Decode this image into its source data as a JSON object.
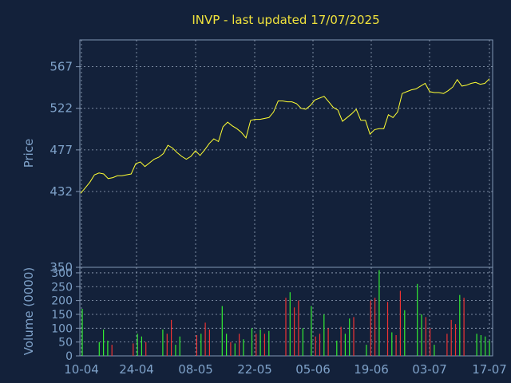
{
  "chart_data": {
    "type": "line",
    "title": "INVP - last updated 17/07/2025",
    "price": {
      "ylabel": "Price",
      "y_ticks": [
        350,
        432,
        477,
        522,
        567
      ],
      "ylim": [
        350,
        596
      ],
      "values": [
        430,
        436,
        442,
        450,
        452,
        451,
        446,
        447,
        449,
        449,
        450,
        451,
        462,
        464,
        459,
        463,
        467,
        469,
        473,
        482,
        479,
        474,
        470,
        467,
        470,
        476,
        471,
        477,
        484,
        489,
        486,
        502,
        507,
        503,
        500,
        496,
        490,
        509,
        510,
        510,
        511,
        512,
        518,
        530,
        530,
        529,
        529,
        527,
        522,
        521,
        525,
        531,
        533,
        535,
        529,
        523,
        520,
        508,
        512,
        516,
        521,
        509,
        509,
        494,
        499,
        500,
        500,
        515,
        512,
        518,
        538,
        540,
        542,
        543,
        546,
        549,
        540,
        539,
        539,
        538,
        541,
        545,
        553,
        546,
        547,
        549,
        550,
        548,
        549,
        554
      ],
      "line_color": "#ffff33"
    },
    "volume": {
      "ylabel": "Volume (0000)",
      "y_ticks": [
        0,
        50,
        100,
        150,
        200,
        250,
        300
      ],
      "ylim": [
        0,
        320
      ],
      "bars": [
        {
          "v": 170,
          "up": true
        },
        {
          "v": 0,
          "up": true
        },
        {
          "v": 0,
          "up": true
        },
        {
          "v": 0,
          "up": true
        },
        {
          "v": 50,
          "up": true
        },
        {
          "v": 95,
          "up": true
        },
        {
          "v": 55,
          "up": true
        },
        {
          "v": 40,
          "up": false
        },
        {
          "v": 0,
          "up": true
        },
        {
          "v": 0,
          "up": true
        },
        {
          "v": 0,
          "up": true
        },
        {
          "v": 0,
          "up": true
        },
        {
          "v": 45,
          "up": false
        },
        {
          "v": 80,
          "up": true
        },
        {
          "v": 70,
          "up": true
        },
        {
          "v": 50,
          "up": false
        },
        {
          "v": 0,
          "up": true
        },
        {
          "v": 0,
          "up": true
        },
        {
          "v": 0,
          "up": true
        },
        {
          "v": 95,
          "up": true
        },
        {
          "v": 80,
          "up": false
        },
        {
          "v": 130,
          "up": false
        },
        {
          "v": 40,
          "up": true
        },
        {
          "v": 70,
          "up": true
        },
        {
          "v": 0,
          "up": true
        },
        {
          "v": 0,
          "up": true
        },
        {
          "v": 0,
          "up": true
        },
        {
          "v": 75,
          "up": false
        },
        {
          "v": 80,
          "up": true
        },
        {
          "v": 120,
          "up": false
        },
        {
          "v": 95,
          "up": false
        },
        {
          "v": 0,
          "up": true
        },
        {
          "v": 0,
          "up": true
        },
        {
          "v": 180,
          "up": true
        },
        {
          "v": 80,
          "up": true
        },
        {
          "v": 50,
          "up": false
        },
        {
          "v": 45,
          "up": true
        },
        {
          "v": 80,
          "up": false
        },
        {
          "v": 60,
          "up": true
        },
        {
          "v": 0,
          "up": true
        },
        {
          "v": 100,
          "up": true
        },
        {
          "v": 80,
          "up": false
        },
        {
          "v": 95,
          "up": true
        },
        {
          "v": 80,
          "up": false
        },
        {
          "v": 90,
          "up": true
        },
        {
          "v": 0,
          "up": true
        },
        {
          "v": 0,
          "up": true
        },
        {
          "v": 0,
          "up": true
        },
        {
          "v": 210,
          "up": false
        },
        {
          "v": 230,
          "up": true
        },
        {
          "v": 175,
          "up": false
        },
        {
          "v": 200,
          "up": false
        },
        {
          "v": 100,
          "up": true
        },
        {
          "v": 0,
          "up": true
        },
        {
          "v": 180,
          "up": true
        },
        {
          "v": 70,
          "up": false
        },
        {
          "v": 80,
          "up": false
        },
        {
          "v": 150,
          "up": true
        },
        {
          "v": 100,
          "up": false
        },
        {
          "v": 0,
          "up": true
        },
        {
          "v": 55,
          "up": true
        },
        {
          "v": 105,
          "up": false
        },
        {
          "v": 80,
          "up": true
        },
        {
          "v": 135,
          "up": true
        },
        {
          "v": 140,
          "up": false
        },
        {
          "v": 0,
          "up": true
        },
        {
          "v": 0,
          "up": true
        },
        {
          "v": 40,
          "up": true
        },
        {
          "v": 200,
          "up": false
        },
        {
          "v": 210,
          "up": false
        },
        {
          "v": 310,
          "up": true
        },
        {
          "v": 0,
          "up": true
        },
        {
          "v": 195,
          "up": false
        },
        {
          "v": 85,
          "up": true
        },
        {
          "v": 75,
          "up": false
        },
        {
          "v": 235,
          "up": false
        },
        {
          "v": 165,
          "up": true
        },
        {
          "v": 0,
          "up": true
        },
        {
          "v": 0,
          "up": true
        },
        {
          "v": 260,
          "up": true
        },
        {
          "v": 150,
          "up": true
        },
        {
          "v": 140,
          "up": false
        },
        {
          "v": 100,
          "up": false
        },
        {
          "v": 40,
          "up": true
        },
        {
          "v": 0,
          "up": true
        },
        {
          "v": 0,
          "up": true
        },
        {
          "v": 80,
          "up": false
        },
        {
          "v": 130,
          "up": false
        },
        {
          "v": 115,
          "up": false
        },
        {
          "v": 220,
          "up": true
        },
        {
          "v": 210,
          "up": false
        },
        {
          "v": 0,
          "up": true
        },
        {
          "v": 0,
          "up": true
        },
        {
          "v": 80,
          "up": true
        },
        {
          "v": 75,
          "up": true
        },
        {
          "v": 70,
          "up": true
        },
        {
          "v": 55,
          "up": true
        }
      ],
      "up_color": "#33ee33",
      "down_color": "#ee3333"
    },
    "x_ticks": [
      "10-04",
      "24-04",
      "08-05",
      "22-05",
      "05-06",
      "19-06",
      "03-07",
      "17-07"
    ],
    "grid": true
  }
}
